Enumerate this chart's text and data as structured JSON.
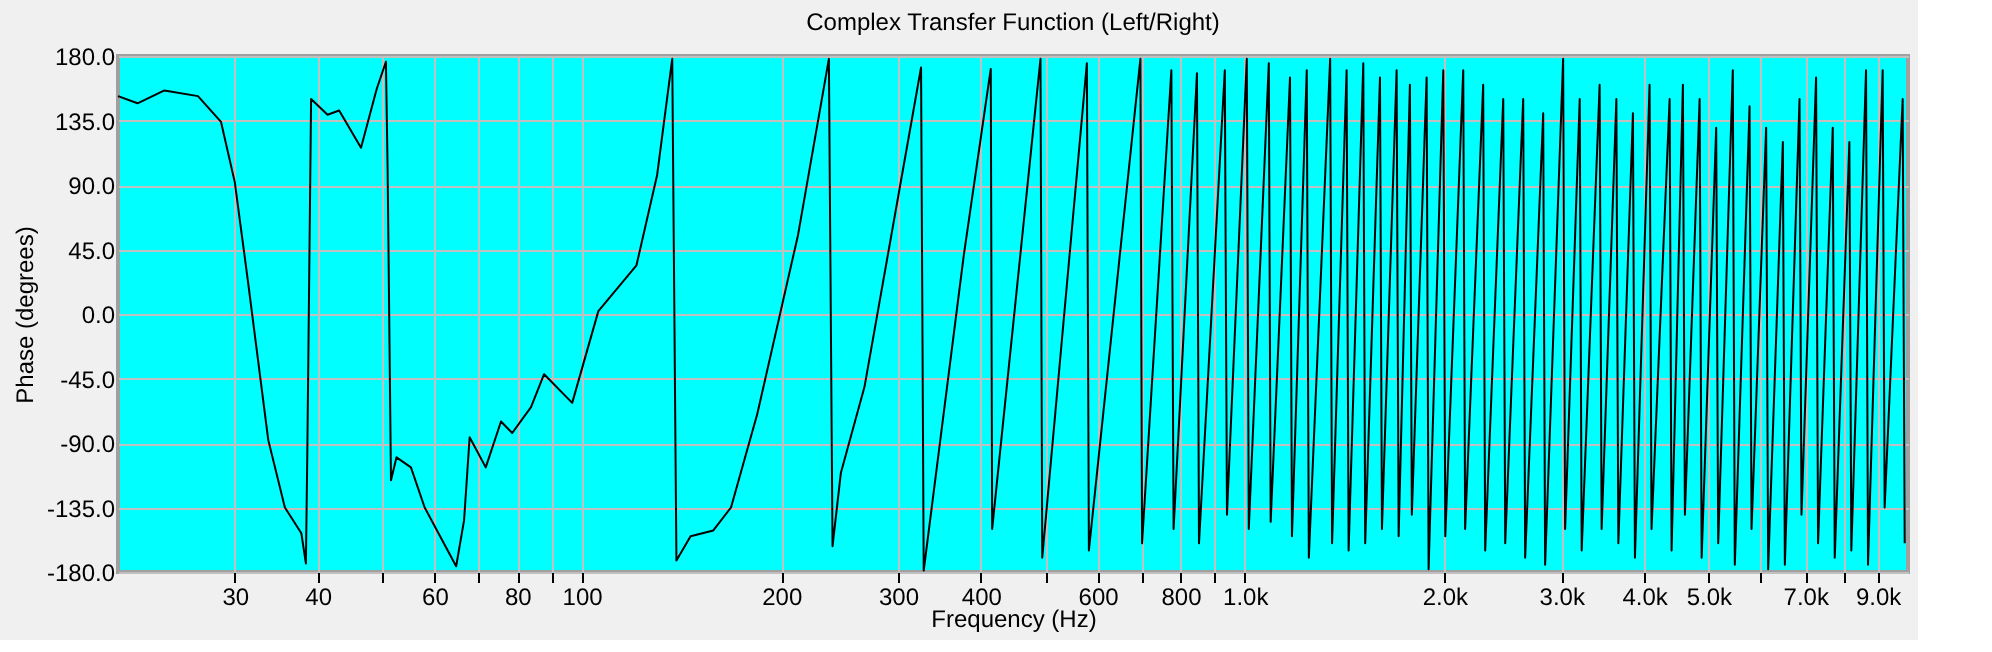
{
  "chart_data": {
    "type": "line",
    "title": "Complex Transfer Function (Left/Right)",
    "xlabel": "Frequency (Hz)",
    "ylabel": "Phase (degrees)",
    "log": "x",
    "grid": true,
    "marker": "none",
    "line_style": "solid",
    "xlim": [
      20,
      10000
    ],
    "ylim": [
      -180,
      180
    ],
    "xticks": [
      30,
      40,
      {
        "value": 50,
        "label": null
      },
      60,
      {
        "value": 70,
        "label": null
      },
      80,
      {
        "value": 90,
        "label": null
      },
      100,
      200,
      300,
      400,
      {
        "value": 500,
        "label": null
      },
      600,
      {
        "value": 700,
        "label": null
      },
      800,
      {
        "value": 900,
        "label": null
      },
      {
        "value": 1000,
        "label": "1.0k"
      },
      {
        "value": 2000,
        "label": "2.0k"
      },
      {
        "value": 3000,
        "label": "3.0k"
      },
      {
        "value": 4000,
        "label": "4.0k"
      },
      {
        "value": 5000,
        "label": "5.0k"
      },
      {
        "value": 6000,
        "label": null
      },
      {
        "value": 7000,
        "label": "7.0k"
      },
      {
        "value": 8000,
        "label": null
      },
      {
        "value": 9000,
        "label": "9.0k"
      }
    ],
    "yticks": [
      {
        "value": -180,
        "label": "-180.0"
      },
      {
        "value": -135,
        "label": "-135.0"
      },
      {
        "value": -90,
        "label": "-90.0"
      },
      {
        "value": -45,
        "label": "-45.0"
      },
      {
        "value": 0,
        "label": "0.0"
      },
      {
        "value": 45,
        "label": "45.0"
      },
      {
        "value": 90,
        "label": "90.0"
      },
      {
        "value": 135,
        "label": "135.0"
      },
      {
        "value": 180,
        "label": "180.0"
      }
    ],
    "series": [
      {
        "color": "#000000",
        "x": [
          20.0,
          21.4,
          23.5,
          26.4,
          28.6,
          30.0,
          31.4,
          33.7,
          35.7,
          37.8,
          38.4,
          38.6,
          39.1,
          41.4,
          43.1,
          46.5,
          49.1,
          50.7,
          51.0,
          51.6,
          52.6,
          55.3,
          58.0,
          64.7,
          66.5,
          67.8,
          71.7,
          75.6,
          78.6,
          83.9,
          87.8,
          96.8,
          106,
          121,
          130,
          137,
          139,
          146,
          158,
          168,
          184,
          212,
          236,
          239,
          246,
          267,
          325,
          328,
          377,
          414,
          416,
          492,
          495,
          578,
          582,
          696,
          700,
          775,
          781,
          847,
          853,
          933,
          940,
          1007,
          1014,
          1087,
          1094,
          1170,
          1178,
          1240,
          1249,
          1345,
          1354,
          1424,
          1434,
          1509,
          1519,
          1599,
          1610,
          1694,
          1706,
          1774,
          1786,
          1880,
          1893,
          1992,
          2006,
          2135,
          2149,
          2288,
          2304,
          2453,
          2470,
          2629,
          2647,
          2818,
          2837,
          3020,
          3041,
          3199,
          3221,
          3428,
          3452,
          3633,
          3658,
          3848,
          3875,
          4077,
          4105,
          4371,
          4401,
          4577,
          4609,
          4851,
          4885,
          5138,
          5174,
          5443,
          5481,
          5769,
          5809,
          6111,
          6154,
          6476,
          6521,
          6862,
          6909,
          7268,
          7318,
          7701,
          7754,
          8158,
          8214,
          8644,
          8704,
          9158,
          9221,
          9817,
          9886
        ],
        "values": [
          152,
          147,
          156,
          152,
          134,
          92,
          23,
          -88,
          -135,
          -153,
          -174,
          -93,
          150,
          139,
          142,
          116,
          157,
          176,
          101,
          -116,
          -100,
          -107,
          -135,
          -176,
          -144,
          -86,
          -107,
          -75,
          -83,
          -65,
          -42,
          -62,
          2,
          34,
          97,
          178,
          -172,
          -155,
          -151,
          -135,
          -70,
          55,
          178,
          -162,
          -111,
          -51,
          172,
          -179,
          41,
          171,
          -150,
          178,
          -170,
          175,
          -165,
          178,
          -160,
          170,
          -150,
          168,
          -160,
          170,
          -140,
          178,
          -150,
          175,
          -145,
          165,
          -155,
          170,
          -170,
          178,
          -160,
          170,
          -165,
          175,
          -160,
          165,
          -150,
          170,
          -155,
          160,
          -140,
          165,
          -178,
          170,
          -155,
          170,
          -150,
          160,
          -165,
          150,
          -160,
          150,
          -170,
          140,
          -175,
          178,
          -150,
          150,
          -165,
          160,
          -150,
          150,
          -160,
          140,
          -170,
          160,
          -150,
          150,
          -165,
          160,
          -140,
          150,
          -170,
          130,
          -160,
          170,
          -175,
          145,
          -150,
          130,
          -178,
          120,
          -175,
          150,
          -140,
          165,
          -160,
          130,
          -170,
          120,
          -165,
          170,
          -175,
          170,
          -135,
          150,
          -160
        ]
      }
    ]
  }
}
